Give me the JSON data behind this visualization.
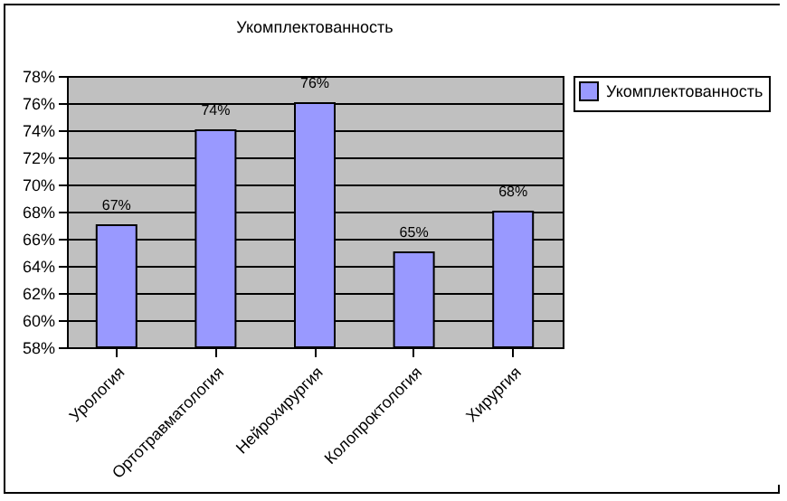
{
  "chart_data": {
    "type": "bar",
    "title": "Укомплектованность",
    "categories": [
      "Урология",
      "Ортотравматология",
      "Нейрохирургия",
      "Колопроктология",
      "Хирургия"
    ],
    "series": [
      {
        "name": "Укомплектованность",
        "color": "#9999ff",
        "values": [
          67,
          74,
          76,
          65,
          68
        ]
      }
    ],
    "value_labels": [
      "67%",
      "74%",
      "76%",
      "65%",
      "68%"
    ],
    "ylim": [
      58,
      78
    ],
    "yticks": [
      {
        "value": 58,
        "label": "58%"
      },
      {
        "value": 60,
        "label": "60%"
      },
      {
        "value": 62,
        "label": "62%"
      },
      {
        "value": 64,
        "label": "64%"
      },
      {
        "value": 66,
        "label": "66%"
      },
      {
        "value": 68,
        "label": "68%"
      },
      {
        "value": 70,
        "label": "70%"
      },
      {
        "value": 72,
        "label": "72%"
      },
      {
        "value": 74,
        "label": "74%"
      },
      {
        "value": 76,
        "label": "76%"
      },
      {
        "value": 78,
        "label": "78%"
      }
    ],
    "grid": "y",
    "legend": "right"
  }
}
